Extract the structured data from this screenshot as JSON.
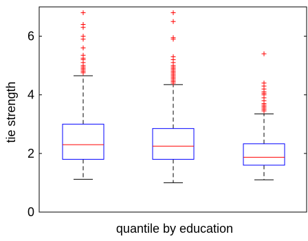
{
  "chart_data": {
    "type": "box",
    "xlabel": "quantile by education",
    "ylabel": "tie strength",
    "ylim": [
      0,
      7
    ],
    "yticks": [
      "0",
      "2",
      "4",
      "6"
    ],
    "grid": false,
    "colors": {
      "box": "#0000ff",
      "median": "#ff0000",
      "whisker": "#000000",
      "outlier": "#ff0000"
    },
    "boxes": [
      {
        "q1": 1.8,
        "median": 2.3,
        "q3": 3.0,
        "whisker_low": 1.12,
        "whisker_high": 4.65,
        "outliers": [
          4.75,
          4.8,
          4.85,
          4.9,
          4.95,
          5.0,
          5.1,
          5.2,
          5.25,
          5.35,
          5.6,
          5.9,
          6.0,
          6.3,
          6.4,
          6.8
        ]
      },
      {
        "q1": 1.8,
        "median": 2.25,
        "q3": 2.85,
        "whisker_low": 1.0,
        "whisker_high": 4.35,
        "outliers": [
          4.4,
          4.45,
          4.5,
          4.55,
          4.6,
          4.65,
          4.7,
          4.75,
          4.8,
          4.85,
          4.9,
          4.95,
          5.0,
          5.1,
          5.2,
          5.3,
          5.9,
          5.95,
          6.5,
          6.8
        ]
      },
      {
        "q1": 1.6,
        "median": 1.87,
        "q3": 2.33,
        "whisker_low": 1.1,
        "whisker_high": 3.35,
        "outliers": [
          3.45,
          3.5,
          3.55,
          3.6,
          3.65,
          3.7,
          3.8,
          3.9,
          4.0,
          4.05,
          4.1,
          4.2,
          4.3,
          4.4,
          5.4
        ]
      }
    ]
  }
}
